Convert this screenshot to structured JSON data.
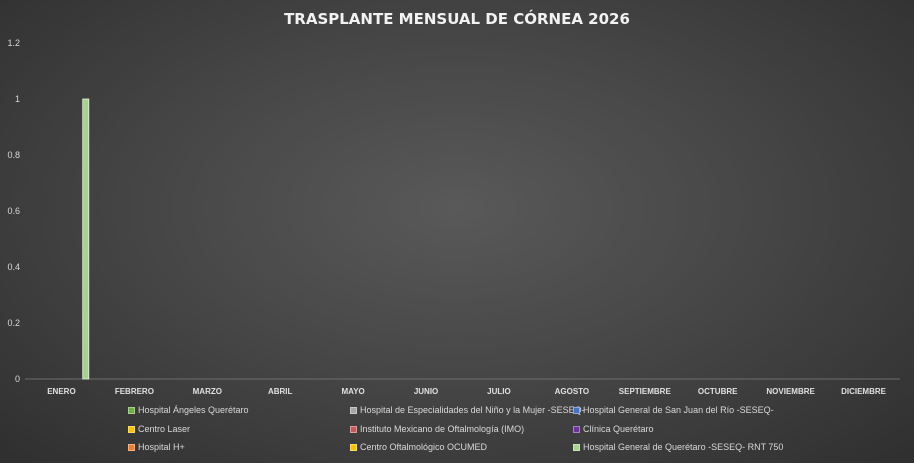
{
  "chart_data": {
    "type": "bar",
    "title": "TRASPLANTE MENSUAL DE CÓRNEA 2026",
    "xlabel": "",
    "ylabel": "",
    "ylim": [
      0,
      1.2
    ],
    "yticks": [
      "0",
      "0.2",
      "0.4",
      "0.6",
      "0.8",
      "1",
      "1.2"
    ],
    "grid": false,
    "legend_position": "bottom",
    "categories": [
      "ENERO",
      "FEBRERO",
      "MARZO",
      "ABRIL",
      "MAYO",
      "JUNIO",
      "JULIO",
      "AGOSTO",
      "SEPTIEMBRE",
      "OCTUBRE",
      "NOVIEMBRE",
      "DICIEMBRE"
    ],
    "series": [
      {
        "name": "Hospital Ángeles Querétaro",
        "color": "#70ad47",
        "values": [
          0,
          0,
          0,
          0,
          0,
          0,
          0,
          0,
          0,
          0,
          0,
          0
        ]
      },
      {
        "name": "Hospital de Especialidades del Niño y la Mujer -SESEQ-",
        "color": "#a5a5a5",
        "values": [
          0,
          0,
          0,
          0,
          0,
          0,
          0,
          0,
          0,
          0,
          0,
          0
        ]
      },
      {
        "name": "Hospital General de San Juan del Río -SESEQ-",
        "color": "#4472c4",
        "values": [
          0,
          0,
          0,
          0,
          0,
          0,
          0,
          0,
          0,
          0,
          0,
          0
        ]
      },
      {
        "name": "Centro Laser",
        "color": "#ffc000",
        "values": [
          0,
          0,
          0,
          0,
          0,
          0,
          0,
          0,
          0,
          0,
          0,
          0
        ]
      },
      {
        "name": "Instituto Mexicano de Oftalmología (IMO)",
        "color": "#c55a5a",
        "values": [
          0,
          0,
          0,
          0,
          0,
          0,
          0,
          0,
          0,
          0,
          0,
          0
        ]
      },
      {
        "name": "Clínica Querétaro",
        "color": "#7030a0",
        "values": [
          0,
          0,
          0,
          0,
          0,
          0,
          0,
          0,
          0,
          0,
          0,
          0
        ]
      },
      {
        "name": "Hospital H+",
        "color": "#ed7d31",
        "values": [
          0,
          0,
          0,
          0,
          0,
          0,
          0,
          0,
          0,
          0,
          0,
          0
        ]
      },
      {
        "name": "Centro Oftalmológico OCUMED",
        "color": "#ffc000",
        "values": [
          0,
          0,
          0,
          0,
          0,
          0,
          0,
          0,
          0,
          0,
          0,
          0
        ]
      },
      {
        "name": "Hospital General de Querétaro -SESEQ- RNT 750",
        "color": "#a9d18e",
        "values": [
          1,
          0,
          0,
          0,
          0,
          0,
          0,
          0,
          0,
          0,
          0,
          0
        ]
      }
    ]
  }
}
